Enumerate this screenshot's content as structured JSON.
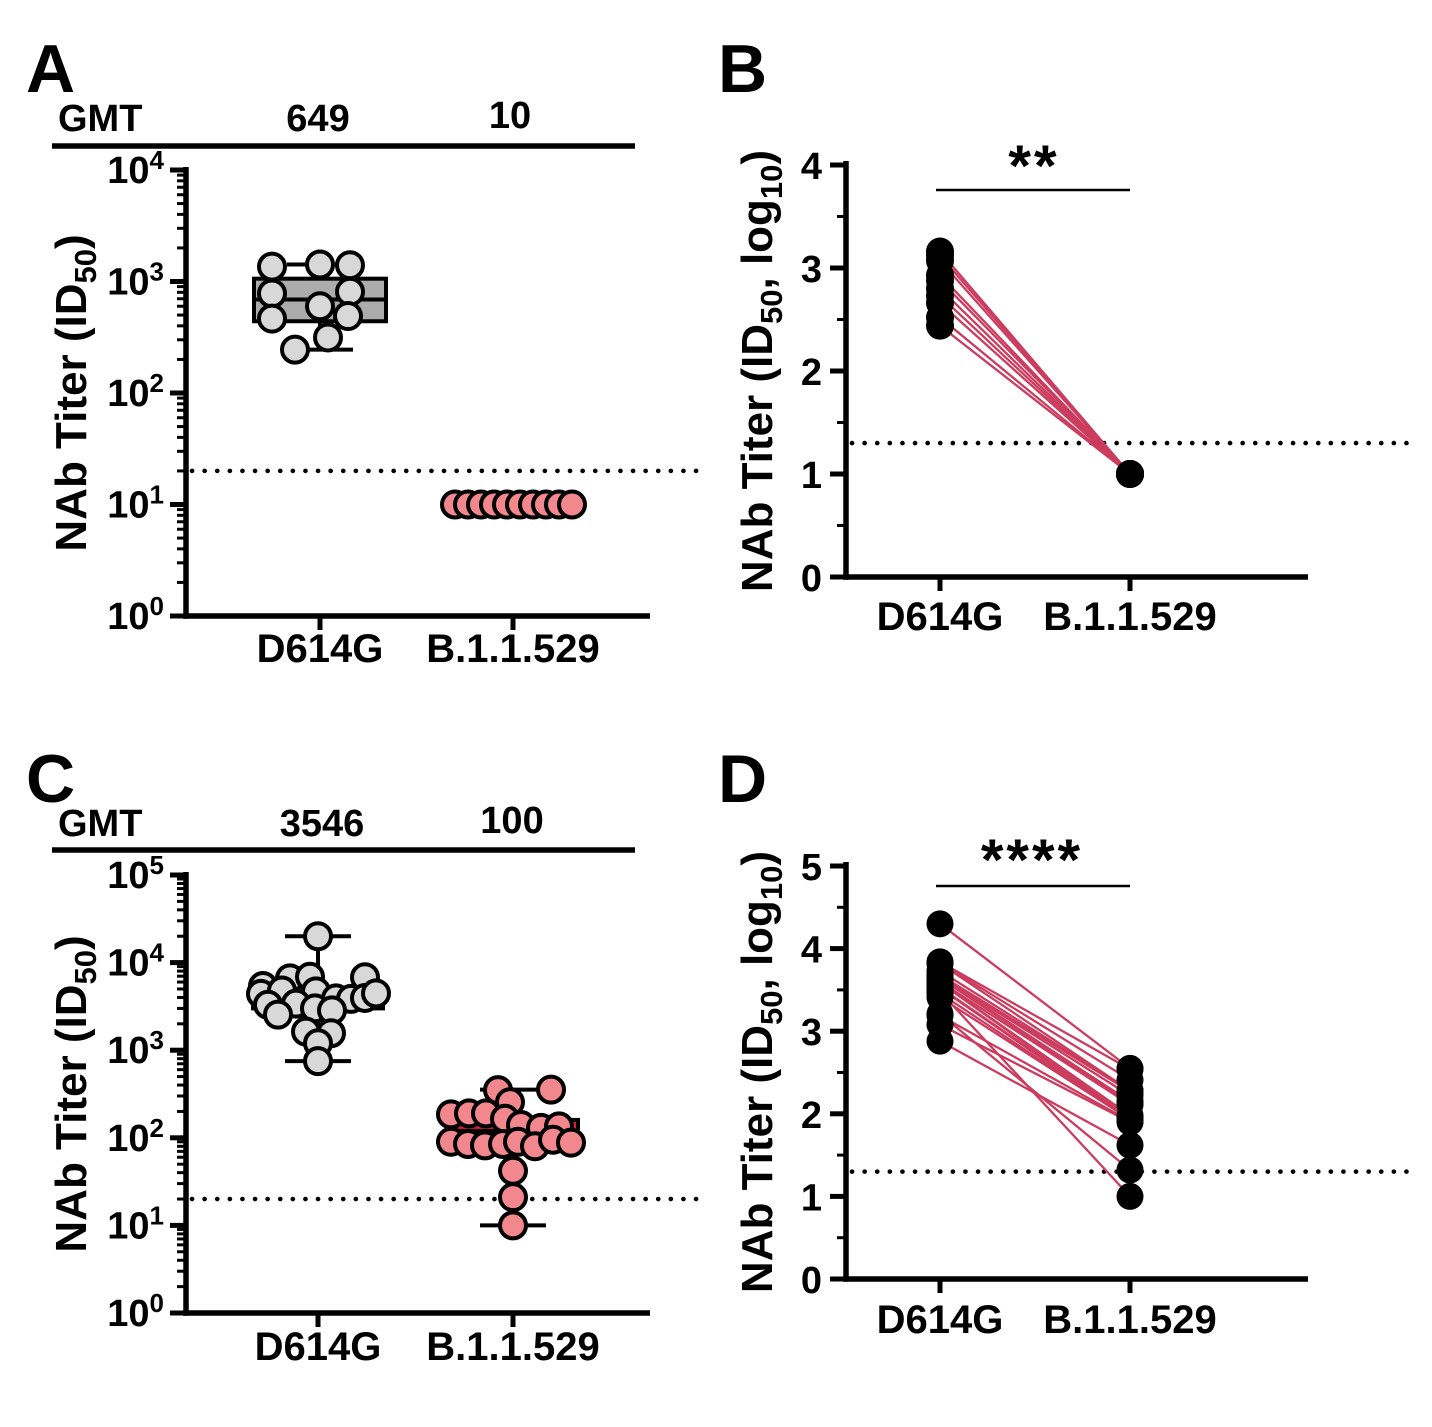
{
  "chart_data": [
    {
      "panel": "A",
      "type": "box-scatter",
      "yscale": "log10",
      "y_range_log": [
        0,
        4
      ],
      "y_tick_exponents": [
        0,
        1,
        2,
        3,
        4
      ],
      "ylabel": {
        "pre": "NAb Titer (ID",
        "sub": "50",
        "post": ")"
      },
      "gmt_row": {
        "label": "GMT",
        "values": [
          "649",
          "10"
        ]
      },
      "categories": [
        "D614G",
        "B.1.1.529"
      ],
      "detection_limit": 20,
      "groups": [
        {
          "category": "D614G",
          "gmt": 649,
          "box_fill": "#ACACAC",
          "point_fill": "#D8D8D8",
          "box": {
            "min": 245,
            "q1": 440,
            "median": 690,
            "q3": 1060,
            "max": 1420
          },
          "points": [
            [
              -48,
              1360
            ],
            [
              0,
              1420
            ],
            [
              30,
              1400
            ],
            [
              -48,
              780
            ],
            [
              30,
              810
            ],
            [
              0,
              600
            ],
            [
              -48,
              465
            ],
            [
              28,
              490
            ],
            [
              8,
              315
            ],
            [
              -25,
              245
            ]
          ]
        },
        {
          "category": "B.1.1.529",
          "gmt": 10,
          "box_fill": null,
          "point_fill": "#F2888D",
          "box": null,
          "points": [
            [
              -58,
              10
            ],
            [
              -45,
              10
            ],
            [
              -32,
              10
            ],
            [
              -19,
              10
            ],
            [
              -6,
              10
            ],
            [
              7,
              10
            ],
            [
              20,
              10
            ],
            [
              33,
              10
            ],
            [
              46,
              10
            ],
            [
              59,
              10
            ]
          ]
        }
      ]
    },
    {
      "panel": "B",
      "type": "paired-scatter",
      "yscale": "linear",
      "y_range": [
        0,
        4
      ],
      "y_ticks": [
        0,
        1,
        2,
        3,
        4
      ],
      "ylabel": {
        "pre": "NAb Titer (ID",
        "sub": "50",
        "mid": ", log",
        "sub2": "10",
        "post": ")"
      },
      "significance": "**",
      "categories": [
        "D614G",
        "B.1.1.529"
      ],
      "detection_limit_log": 1.3,
      "point_color": "#000000",
      "line_color": "#CB3C5F",
      "pairs": [
        [
          3.16,
          1.0
        ],
        [
          3.12,
          1.0
        ],
        [
          3.07,
          1.0
        ],
        [
          2.93,
          1.0
        ],
        [
          2.88,
          1.0
        ],
        [
          2.8,
          1.0
        ],
        [
          2.73,
          1.0
        ],
        [
          2.66,
          1.0
        ],
        [
          2.52,
          1.0
        ],
        [
          2.44,
          1.0
        ]
      ]
    },
    {
      "panel": "C",
      "type": "box-scatter",
      "yscale": "log10",
      "y_range_log": [
        0,
        5
      ],
      "y_tick_exponents": [
        0,
        1,
        2,
        3,
        4,
        5
      ],
      "ylabel": {
        "pre": "NAb Titer (ID",
        "sub": "50",
        "post": ")"
      },
      "gmt_row": {
        "label": "GMT",
        "values": [
          "3546",
          "100"
        ]
      },
      "categories": [
        "D614G",
        "B.1.1.529"
      ],
      "detection_limit": 20,
      "groups": [
        {
          "category": "D614G",
          "gmt": 3546,
          "box_fill": "#ACACAC",
          "point_fill": "#D8D8D8",
          "box": {
            "min": 750,
            "q1": 3000,
            "median": 4000,
            "q3": 4700,
            "max": 20000
          },
          "points": [
            [
              0,
              20000
            ],
            [
              -55,
              5400
            ],
            [
              -28,
              6600
            ],
            [
              -8,
              6900
            ],
            [
              47,
              6800
            ],
            [
              -57,
              4400
            ],
            [
              -36,
              4800
            ],
            [
              -2,
              4700
            ],
            [
              18,
              3900
            ],
            [
              33,
              3850
            ],
            [
              47,
              3950
            ],
            [
              58,
              4450
            ],
            [
              -50,
              3300
            ],
            [
              -22,
              3400
            ],
            [
              -3,
              3000
            ],
            [
              14,
              2850
            ],
            [
              -40,
              2550
            ],
            [
              -12,
              1630
            ],
            [
              13,
              1560
            ],
            [
              0,
              1200
            ],
            [
              0,
              750
            ]
          ]
        },
        {
          "category": "B.1.1.529",
          "gmt": 100,
          "box_fill": "#DF1A3F",
          "point_fill": "#F2888D",
          "box": {
            "min": 10,
            "q1": 80,
            "median": 120,
            "q3": 160,
            "max": 355
          },
          "points": [
            [
              -15,
              350
            ],
            [
              38,
              355
            ],
            [
              -3,
              255
            ],
            [
              -62,
              185
            ],
            [
              -44,
              190
            ],
            [
              -27,
              190
            ],
            [
              -8,
              165
            ],
            [
              8,
              140
            ],
            [
              28,
              130
            ],
            [
              46,
              135
            ],
            [
              -62,
              90
            ],
            [
              -45,
              85
            ],
            [
              -28,
              82
            ],
            [
              -10,
              85
            ],
            [
              5,
              90
            ],
            [
              22,
              80
            ],
            [
              40,
              95
            ],
            [
              58,
              88
            ],
            [
              0,
              42
            ],
            [
              0,
              21
            ],
            [
              0,
              10
            ]
          ]
        }
      ]
    },
    {
      "panel": "D",
      "type": "paired-scatter",
      "yscale": "linear",
      "y_range": [
        0,
        5
      ],
      "y_ticks": [
        0,
        1,
        2,
        3,
        4,
        5
      ],
      "ylabel": {
        "pre": "NAb Titer (ID",
        "sub": "50",
        "mid": ", log",
        "sub2": "10",
        "post": ")"
      },
      "significance": "****",
      "categories": [
        "D614G",
        "B.1.1.529"
      ],
      "detection_limit_log": 1.3,
      "point_color": "#000000",
      "line_color": "#CB3C5F",
      "pairs": [
        [
          4.3,
          2.55
        ],
        [
          3.84,
          2.54
        ],
        [
          3.83,
          2.41
        ],
        [
          3.82,
          2.28
        ],
        [
          3.73,
          2.28
        ],
        [
          3.68,
          2.27
        ],
        [
          3.67,
          2.22
        ],
        [
          3.65,
          2.15
        ],
        [
          3.64,
          2.13
        ],
        [
          3.6,
          2.11
        ],
        [
          3.59,
          1.98
        ],
        [
          3.59,
          1.95
        ],
        [
          3.53,
          1.95
        ],
        [
          3.52,
          1.94
        ],
        [
          3.48,
          1.0
        ],
        [
          3.46,
          1.93
        ],
        [
          3.41,
          1.93
        ],
        [
          3.21,
          1.32
        ],
        [
          3.19,
          1.91
        ],
        [
          3.08,
          1.9
        ],
        [
          2.88,
          1.62
        ]
      ]
    }
  ],
  "colors": {
    "background": "#FFFFFF",
    "axis": "#000000",
    "gray_box": "#ACACAC",
    "gray_point": "#D8D8D8",
    "pink_point": "#F2888D",
    "red_box": "#DF1A3F",
    "pair_line": "#CB3C5F",
    "black_point": "#000000"
  }
}
